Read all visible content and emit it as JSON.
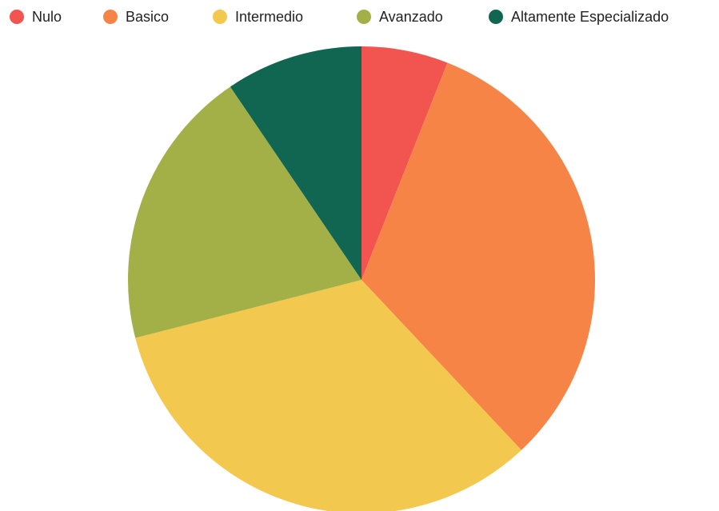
{
  "chart_data": {
    "type": "pie",
    "categories": [
      "Nulo",
      "Basico",
      "Intermedio",
      "Avanzado",
      "Altamente Especializado"
    ],
    "values": [
      6,
      32,
      33,
      19.5,
      9.5
    ],
    "colors": [
      "#f25450",
      "#f78447",
      "#f2c84e",
      "#a3b048",
      "#116651"
    ],
    "legend": "top"
  }
}
